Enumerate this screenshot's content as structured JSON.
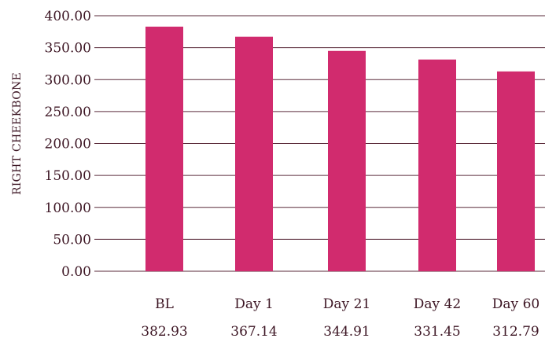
{
  "chart_data": {
    "type": "bar",
    "ylabel": "RIGHT CHEEKBONE",
    "ylim": [
      0,
      400
    ],
    "ytick_labels": [
      "400.00",
      "350.00",
      "300.00",
      "250.00",
      "200.00",
      "150.00",
      "100.00",
      "50.00",
      "0.00"
    ],
    "yticks": [
      400,
      350,
      300,
      250,
      200,
      150,
      100,
      50,
      0
    ],
    "categories": [
      "BL",
      "Day 1",
      "Day 21",
      "Day 42",
      "Day 60"
    ],
    "values": [
      382.93,
      367.14,
      344.91,
      331.45,
      312.79
    ],
    "value_labels": [
      "382.93",
      "367.14",
      "344.91",
      "331.45",
      "312.79"
    ],
    "grid": true,
    "colors": {
      "bar": "#d12b6e",
      "grid": "#5a2a3a",
      "text": "#3d1624"
    }
  }
}
